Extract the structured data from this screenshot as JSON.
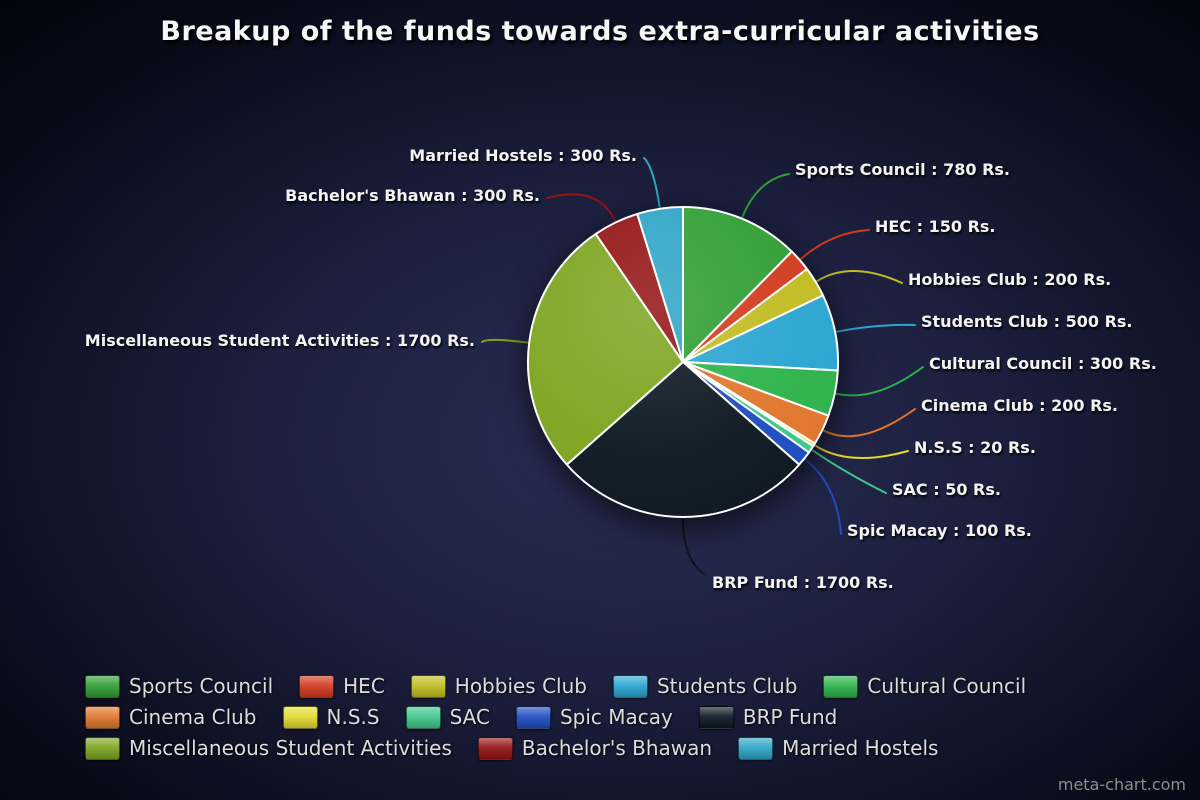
{
  "title": "Breakup of the funds towards extra-curricular activities",
  "watermark": "meta-chart.com",
  "chart_data": {
    "type": "pie",
    "title": "Breakup of the funds towards extra-curricular activities",
    "unit": "Rs.",
    "start_angle_deg": 0,
    "direction": "clockwise",
    "legend_position": "bottom",
    "slices": [
      {
        "label": "Sports Council",
        "value": 780,
        "color": "#2f9e33",
        "callout": "Sports Council : 780 Rs."
      },
      {
        "label": "HEC",
        "value": 150,
        "color": "#d23a1e",
        "callout": "HEC : 150 Rs."
      },
      {
        "label": "Hobbies Club",
        "value": 200,
        "color": "#c0bc1f",
        "callout": "Hobbies Club : 200 Rs."
      },
      {
        "label": "Students Club",
        "value": 500,
        "color": "#29a5d1",
        "callout": "Students Club : 500 Rs."
      },
      {
        "label": "Cultural Council",
        "value": 300,
        "color": "#2db24a",
        "callout": "Cultural Council : 300 Rs."
      },
      {
        "label": "Cinema Club",
        "value": 200,
        "color": "#e0762b",
        "callout": "Cinema Club : 200 Rs."
      },
      {
        "label": "N.S.S",
        "value": 20,
        "color": "#e4da30",
        "callout": "N.S.S : 20 Rs."
      },
      {
        "label": "SAC",
        "value": 50,
        "color": "#3fc68c",
        "callout": "SAC : 50 Rs."
      },
      {
        "label": "Spic Macay",
        "value": 100,
        "color": "#1e4dc0",
        "callout": "Spic Macay : 100 Rs."
      },
      {
        "label": "BRP Fund",
        "value": 1700,
        "color": "#0c1722",
        "callout": "BRP Fund : 1700 Rs."
      },
      {
        "label": "Miscellaneous Student Activities",
        "value": 1700,
        "color": "#7da41f",
        "callout": "Miscellaneous Student Activities : 1700 Rs."
      },
      {
        "label": "Bachelor's Bhawan",
        "value": 300,
        "color": "#931313",
        "callout": "Bachelor's Bhawan : 300 Rs."
      },
      {
        "label": "Married Hostels",
        "value": 300,
        "color": "#2ca5c6",
        "callout": "Married Hostels : 300 Rs."
      }
    ]
  }
}
